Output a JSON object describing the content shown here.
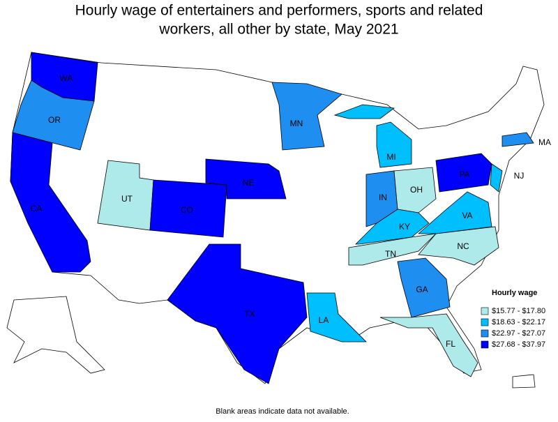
{
  "title_lines": [
    "Hourly wage of entertainers and performers, sports and related",
    "workers, all other by state, May 2021"
  ],
  "legend": {
    "title": "Hourly wage",
    "items": [
      {
        "label": "$15.77 - $17.80",
        "color": "#aeeaea"
      },
      {
        "label": "$18.63 - $22.17",
        "color": "#00bfff"
      },
      {
        "label": "$22.97 - $27.07",
        "color": "#1e8ef0"
      },
      {
        "label": "$27.68 - $37.97",
        "color": "#0000ff"
      }
    ]
  },
  "states": [
    {
      "abbr": "WA",
      "bin": 3
    },
    {
      "abbr": "OR",
      "bin": 2
    },
    {
      "abbr": "CA",
      "bin": 3
    },
    {
      "abbr": "UT",
      "bin": 0
    },
    {
      "abbr": "CO",
      "bin": 3
    },
    {
      "abbr": "NE",
      "bin": 3
    },
    {
      "abbr": "TX",
      "bin": 3
    },
    {
      "abbr": "MN",
      "bin": 2
    },
    {
      "abbr": "MI",
      "bin": 1
    },
    {
      "abbr": "IN",
      "bin": 2
    },
    {
      "abbr": "OH",
      "bin": 0
    },
    {
      "abbr": "KY",
      "bin": 1
    },
    {
      "abbr": "TN",
      "bin": 0
    },
    {
      "abbr": "NC",
      "bin": 0
    },
    {
      "abbr": "VA",
      "bin": 1
    },
    {
      "abbr": "PA",
      "bin": 3
    },
    {
      "abbr": "NJ",
      "bin": 1
    },
    {
      "abbr": "MA",
      "bin": 2
    },
    {
      "abbr": "GA",
      "bin": 2
    },
    {
      "abbr": "FL",
      "bin": 0
    },
    {
      "abbr": "LA",
      "bin": 1
    }
  ],
  "footnote": "Blank areas indicate data not available."
}
